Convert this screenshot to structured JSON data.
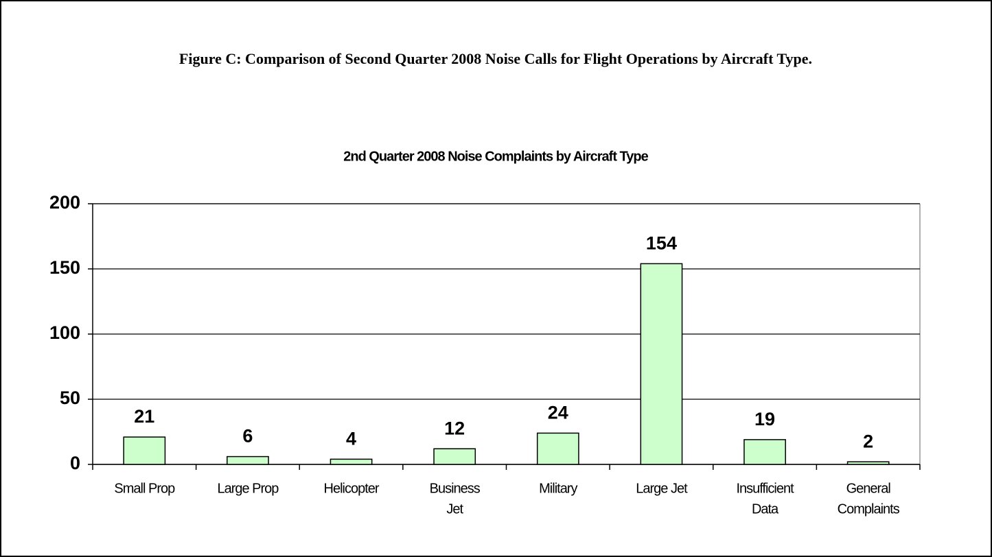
{
  "caption": "Figure C:  Comparison of Second Quarter 2008 Noise Calls for Flight Operations by Aircraft Type.",
  "chart_data": {
    "type": "bar",
    "title": "2nd Quarter 2008 Noise Complaints by Aircraft Type",
    "categories": [
      [
        "Small Prop"
      ],
      [
        "Large Prop"
      ],
      [
        "Helicopter"
      ],
      [
        "Business",
        "Jet"
      ],
      [
        "Military"
      ],
      [
        "Large Jet"
      ],
      [
        "Insufficient",
        "Data"
      ],
      [
        "General",
        "Complaints"
      ]
    ],
    "values": [
      21,
      6,
      4,
      12,
      24,
      154,
      19,
      2
    ],
    "color": "#ccffcc",
    "ylim": [
      0,
      200
    ],
    "yticks": [
      0,
      50,
      100,
      150,
      200
    ],
    "grid": true
  }
}
